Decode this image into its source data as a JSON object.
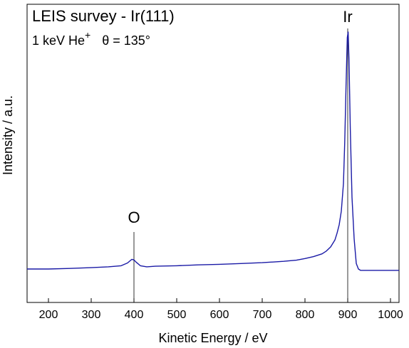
{
  "chart_data": {
    "type": "line",
    "title": "LEIS survey - Ir(111)",
    "subtitle": {
      "prefix": "1 keV He",
      "superscript": "+",
      "angle": "θ = 135°"
    },
    "xlabel": "Kinetic Energy / eV",
    "ylabel": "Intensity / a.u.",
    "xlim": [
      150,
      1020
    ],
    "ylim": [
      0,
      1
    ],
    "xticks": [
      200,
      300,
      400,
      500,
      600,
      700,
      800,
      900,
      1000
    ],
    "xtick_labels": [
      "200",
      "300",
      "400",
      "500",
      "600",
      "700",
      "800",
      "900",
      "1000"
    ],
    "y_tick_labels_shown": false,
    "grid": false,
    "series_color": "#1a1aa6",
    "annotations": [
      {
        "label": "O",
        "x": 400
      },
      {
        "label": "Ir",
        "x": 900
      }
    ],
    "series": [
      {
        "x": [
          150,
          200,
          250,
          300,
          340,
          370,
          385,
          395,
          400,
          405,
          415,
          430,
          450,
          500,
          550,
          600,
          650,
          700,
          750,
          780,
          800,
          820,
          840,
          850,
          860,
          870,
          875,
          880,
          885,
          890,
          893,
          896,
          899,
          901,
          903,
          906,
          910,
          915,
          920,
          925,
          930,
          1000,
          1020
        ],
        "y": [
          0.14,
          0.14,
          0.142,
          0.145,
          0.148,
          0.152,
          0.162,
          0.175,
          0.173,
          0.165,
          0.152,
          0.148,
          0.15,
          0.152,
          0.155,
          0.157,
          0.16,
          0.163,
          0.168,
          0.172,
          0.178,
          0.185,
          0.195,
          0.205,
          0.22,
          0.245,
          0.27,
          0.3,
          0.35,
          0.45,
          0.6,
          0.8,
          0.98,
          1.0,
          0.9,
          0.65,
          0.4,
          0.25,
          0.16,
          0.14,
          0.135,
          0.135,
          0.135
        ]
      }
    ]
  }
}
